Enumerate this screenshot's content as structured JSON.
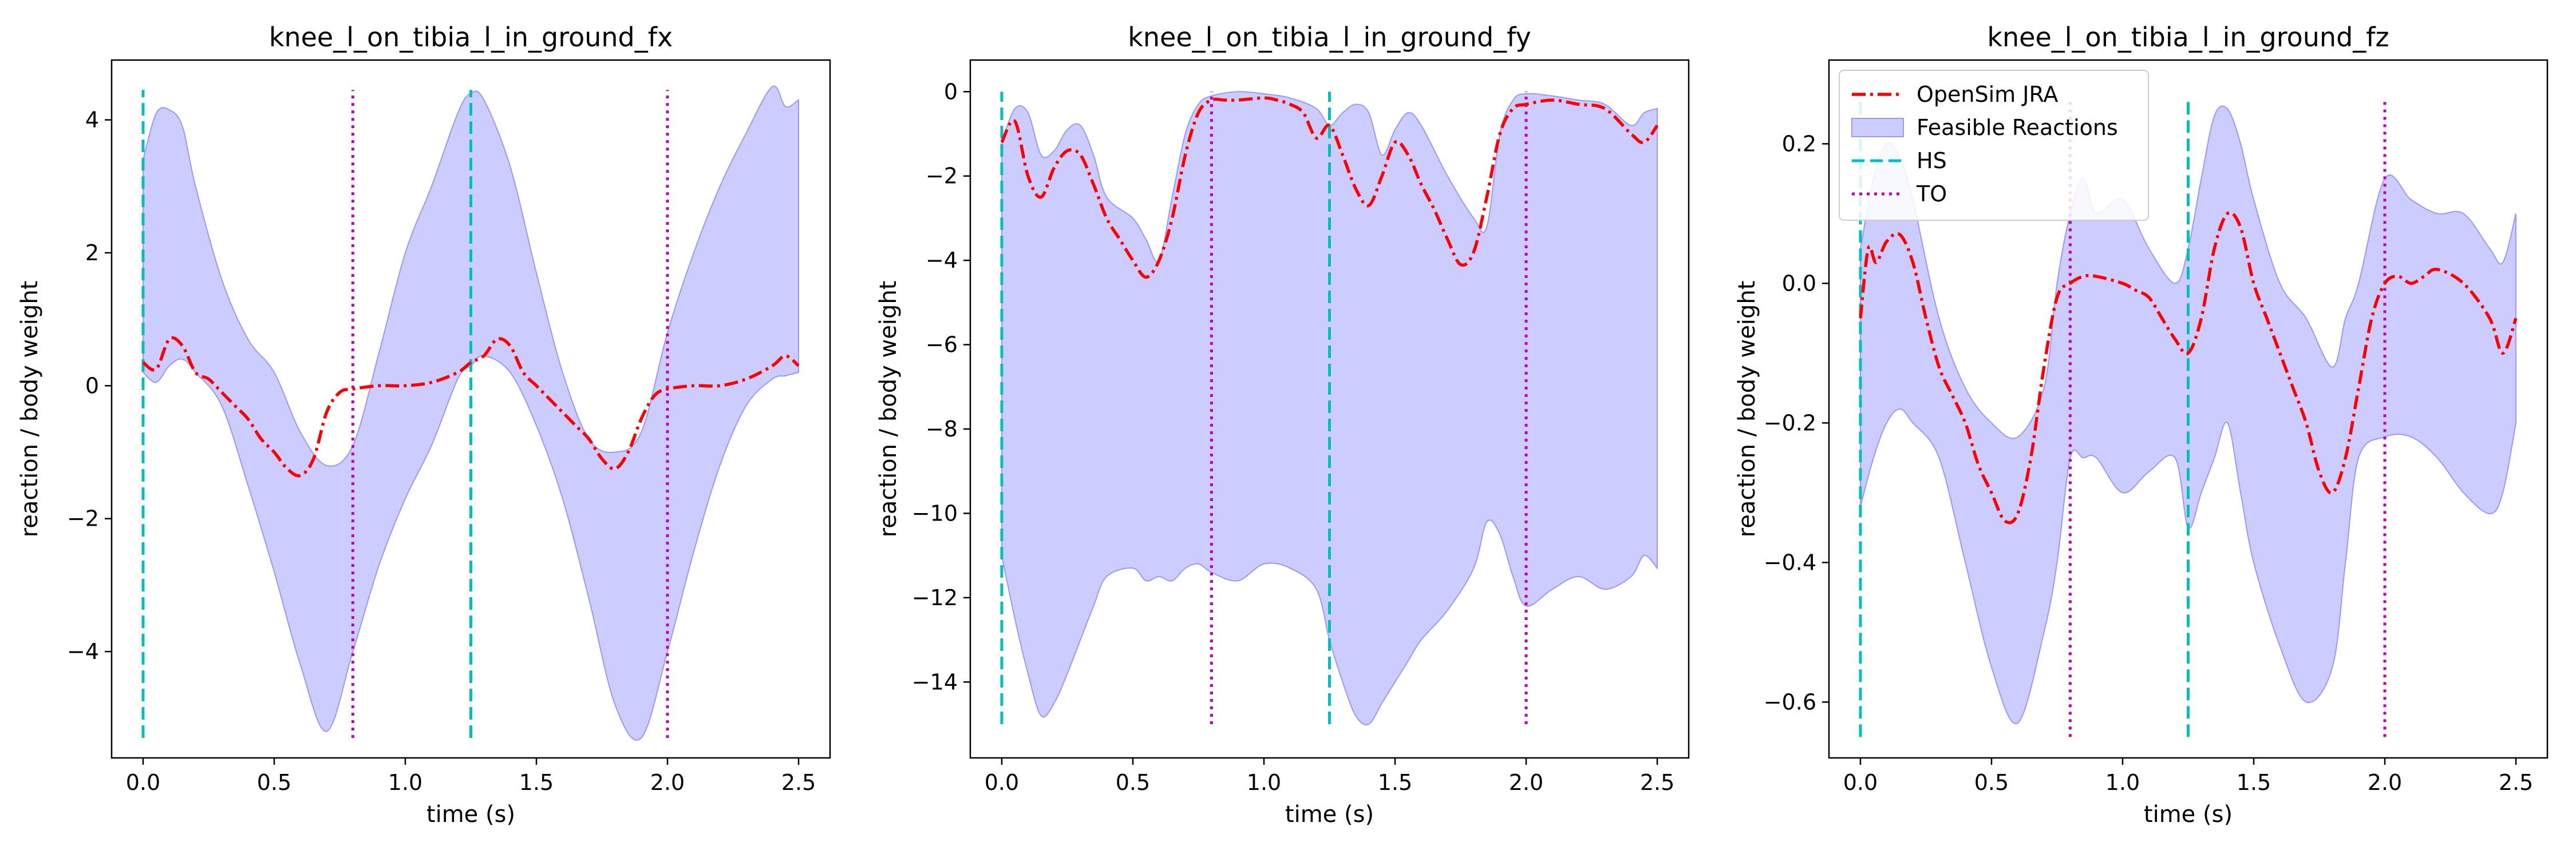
{
  "chart_data": [
    {
      "type": "line",
      "title": "knee_l_on_tibia_l_in_ground_fx",
      "xlabel": "time (s)",
      "ylabel": "reaction / body weight",
      "xlim": [
        -0.12,
        2.62
      ],
      "ylim": [
        -5.6,
        4.9
      ],
      "xticks": [
        0.0,
        0.5,
        1.0,
        1.5,
        2.0,
        2.5
      ],
      "xtick_labels": [
        "0.0",
        "0.5",
        "1.0",
        "1.5",
        "2.0",
        "2.5"
      ],
      "yticks": [
        -4,
        -2,
        0,
        2,
        4
      ],
      "ytick_labels": [
        "−4",
        "−2",
        "0",
        "2",
        "4"
      ],
      "events": {
        "HS": [
          0.0,
          1.25
        ],
        "TO": [
          0.8,
          2.0
        ]
      },
      "events_range": [
        -5.3,
        4.45
      ],
      "band": {
        "name": "Feasible Reactions",
        "x": [
          0.0,
          0.05,
          0.1,
          0.15,
          0.2,
          0.3,
          0.4,
          0.5,
          0.6,
          0.7,
          0.8,
          0.9,
          1.0,
          1.1,
          1.2,
          1.25,
          1.3,
          1.4,
          1.5,
          1.6,
          1.7,
          1.8,
          1.9,
          2.0,
          2.1,
          2.2,
          2.3,
          2.4,
          2.45,
          2.5
        ],
        "upper": [
          3.4,
          4.1,
          4.15,
          3.9,
          3.0,
          1.6,
          0.7,
          0.2,
          -0.7,
          -1.2,
          -0.9,
          0.5,
          2.0,
          3.0,
          4.1,
          4.4,
          4.3,
          3.3,
          1.7,
          0.2,
          -0.8,
          -1.0,
          -0.7,
          0.8,
          2.0,
          3.0,
          3.8,
          4.5,
          4.2,
          4.3
        ],
        "lower": [
          0.2,
          0.05,
          0.3,
          0.4,
          0.2,
          -0.3,
          -1.5,
          -2.8,
          -4.2,
          -5.2,
          -4.0,
          -2.7,
          -1.7,
          -0.9,
          0.1,
          0.3,
          0.45,
          0.2,
          -0.6,
          -1.7,
          -3.2,
          -4.8,
          -5.3,
          -4.0,
          -2.5,
          -1.2,
          -0.3,
          0.1,
          0.15,
          0.2
        ]
      },
      "series": [
        {
          "name": "OpenSim JRA",
          "x": [
            0.0,
            0.05,
            0.1,
            0.15,
            0.2,
            0.25,
            0.3,
            0.35,
            0.4,
            0.45,
            0.5,
            0.55,
            0.6,
            0.65,
            0.7,
            0.75,
            0.8,
            0.9,
            1.0,
            1.1,
            1.2,
            1.25,
            1.3,
            1.35,
            1.4,
            1.45,
            1.5,
            1.55,
            1.6,
            1.65,
            1.7,
            1.75,
            1.8,
            1.85,
            1.9,
            1.95,
            2.0,
            2.1,
            2.2,
            2.3,
            2.4,
            2.45,
            2.5
          ],
          "y": [
            0.35,
            0.25,
            0.7,
            0.6,
            0.2,
            0.1,
            -0.1,
            -0.3,
            -0.5,
            -0.8,
            -1.0,
            -1.25,
            -1.35,
            -1.1,
            -0.4,
            -0.1,
            -0.05,
            0.0,
            0.0,
            0.05,
            0.2,
            0.35,
            0.45,
            0.7,
            0.6,
            0.2,
            0.0,
            -0.2,
            -0.4,
            -0.6,
            -0.8,
            -1.1,
            -1.25,
            -1.0,
            -0.5,
            -0.15,
            -0.05,
            0.0,
            0.0,
            0.1,
            0.3,
            0.45,
            0.3
          ]
        }
      ],
      "legend": false
    },
    {
      "type": "line",
      "title": "knee_l_on_tibia_l_in_ground_fy",
      "xlabel": "time (s)",
      "ylabel": "reaction / body weight",
      "xlim": [
        -0.12,
        2.62
      ],
      "ylim": [
        -15.8,
        0.75
      ],
      "xticks": [
        0.0,
        0.5,
        1.0,
        1.5,
        2.0,
        2.5
      ],
      "xtick_labels": [
        "0.0",
        "0.5",
        "1.0",
        "1.5",
        "2.0",
        "2.5"
      ],
      "yticks": [
        0,
        -2,
        -4,
        -6,
        -8,
        -10,
        -12,
        -14
      ],
      "ytick_labels": [
        "0",
        "−2",
        "−4",
        "−6",
        "−8",
        "−10",
        "−12",
        "−14"
      ],
      "events": {
        "HS": [
          0.0,
          1.25
        ],
        "TO": [
          0.8,
          2.0
        ]
      },
      "events_range": [
        -15.0,
        0.0
      ],
      "band": {
        "name": "Feasible Reactions",
        "x": [
          0.0,
          0.05,
          0.1,
          0.15,
          0.2,
          0.25,
          0.3,
          0.35,
          0.4,
          0.5,
          0.55,
          0.6,
          0.65,
          0.7,
          0.75,
          0.8,
          0.9,
          1.0,
          1.1,
          1.2,
          1.25,
          1.3,
          1.35,
          1.4,
          1.45,
          1.5,
          1.55,
          1.6,
          1.7,
          1.8,
          1.85,
          1.9,
          1.95,
          2.0,
          2.1,
          2.2,
          2.3,
          2.4,
          2.45,
          2.5
        ],
        "upper": [
          -1.2,
          -0.4,
          -0.5,
          -1.5,
          -1.4,
          -0.9,
          -0.8,
          -1.5,
          -2.5,
          -3.0,
          -3.5,
          -4.0,
          -2.5,
          -1.0,
          -0.3,
          -0.1,
          0.0,
          -0.05,
          -0.15,
          -0.4,
          -0.8,
          -0.5,
          -0.3,
          -0.5,
          -1.5,
          -0.9,
          -0.5,
          -0.8,
          -2.0,
          -3.0,
          -3.2,
          -1.0,
          -0.2,
          -0.05,
          -0.1,
          -0.2,
          -0.3,
          -0.8,
          -0.5,
          -0.4
        ],
        "lower": [
          -11.0,
          -12.5,
          -13.8,
          -14.8,
          -14.5,
          -13.8,
          -13.0,
          -12.2,
          -11.5,
          -11.3,
          -11.6,
          -11.5,
          -11.6,
          -11.3,
          -11.2,
          -11.4,
          -11.6,
          -11.2,
          -11.3,
          -11.8,
          -13.0,
          -14.0,
          -14.8,
          -15.0,
          -14.5,
          -14.0,
          -13.5,
          -13.0,
          -12.3,
          -11.3,
          -10.2,
          -10.5,
          -11.5,
          -12.2,
          -11.8,
          -11.5,
          -11.8,
          -11.5,
          -11.0,
          -11.3
        ]
      },
      "series": [
        {
          "name": "OpenSim JRA",
          "x": [
            0.0,
            0.05,
            0.1,
            0.15,
            0.2,
            0.25,
            0.3,
            0.35,
            0.4,
            0.45,
            0.5,
            0.55,
            0.6,
            0.65,
            0.7,
            0.75,
            0.8,
            0.85,
            0.9,
            1.0,
            1.05,
            1.1,
            1.15,
            1.2,
            1.25,
            1.3,
            1.35,
            1.4,
            1.45,
            1.5,
            1.55,
            1.6,
            1.65,
            1.7,
            1.75,
            1.8,
            1.85,
            1.9,
            1.95,
            2.0,
            2.1,
            2.2,
            2.3,
            2.4,
            2.45,
            2.5
          ],
          "y": [
            -1.2,
            -0.7,
            -2.0,
            -2.5,
            -1.8,
            -1.4,
            -1.5,
            -2.2,
            -3.0,
            -3.5,
            -4.0,
            -4.4,
            -4.0,
            -3.0,
            -1.5,
            -0.5,
            -0.2,
            -0.2,
            -0.2,
            -0.15,
            -0.2,
            -0.3,
            -0.5,
            -1.1,
            -0.8,
            -1.5,
            -2.3,
            -2.7,
            -2.0,
            -1.2,
            -1.5,
            -2.2,
            -2.8,
            -3.5,
            -4.1,
            -3.8,
            -2.5,
            -1.0,
            -0.4,
            -0.3,
            -0.2,
            -0.3,
            -0.4,
            -1.0,
            -1.2,
            -0.8
          ]
        }
      ],
      "legend": false
    },
    {
      "type": "line",
      "title": "knee_l_on_tibia_l_in_ground_fz",
      "xlabel": "time (s)",
      "ylabel": "reaction / body weight",
      "xlim": [
        -0.12,
        2.62
      ],
      "ylim": [
        -0.68,
        0.32
      ],
      "xticks": [
        0.0,
        0.5,
        1.0,
        1.5,
        2.0,
        2.5
      ],
      "xtick_labels": [
        "0.0",
        "0.5",
        "1.0",
        "1.5",
        "2.0",
        "2.5"
      ],
      "yticks": [
        0.2,
        0.0,
        -0.2,
        -0.4,
        -0.6
      ],
      "ytick_labels": [
        "0.2",
        "0.0",
        "−0.2",
        "−0.4",
        "−0.6"
      ],
      "events": {
        "HS": [
          0.0,
          1.25
        ],
        "TO": [
          0.8,
          2.0
        ]
      },
      "events_range": [
        -0.65,
        0.26
      ],
      "band": {
        "name": "Feasible Reactions",
        "x": [
          0.0,
          0.05,
          0.1,
          0.15,
          0.2,
          0.3,
          0.4,
          0.5,
          0.6,
          0.7,
          0.75,
          0.8,
          0.85,
          0.9,
          1.0,
          1.1,
          1.2,
          1.25,
          1.3,
          1.35,
          1.4,
          1.45,
          1.5,
          1.6,
          1.7,
          1.8,
          1.85,
          1.9,
          2.0,
          2.1,
          2.2,
          2.3,
          2.4,
          2.45,
          2.5
        ],
        "upper": [
          0.05,
          0.15,
          0.2,
          0.18,
          0.12,
          -0.05,
          -0.15,
          -0.2,
          -0.22,
          -0.15,
          0.0,
          0.1,
          0.15,
          0.1,
          0.12,
          0.05,
          0.0,
          0.05,
          0.15,
          0.24,
          0.25,
          0.2,
          0.12,
          0.0,
          -0.05,
          -0.12,
          -0.05,
          0.0,
          0.15,
          0.12,
          0.1,
          0.1,
          0.05,
          0.03,
          0.1
        ],
        "lower": [
          -0.32,
          -0.25,
          -0.2,
          -0.18,
          -0.2,
          -0.25,
          -0.4,
          -0.55,
          -0.63,
          -0.5,
          -0.4,
          -0.25,
          -0.25,
          -0.25,
          -0.3,
          -0.27,
          -0.25,
          -0.35,
          -0.3,
          -0.25,
          -0.2,
          -0.3,
          -0.4,
          -0.52,
          -0.6,
          -0.55,
          -0.4,
          -0.25,
          -0.22,
          -0.22,
          -0.25,
          -0.3,
          -0.33,
          -0.3,
          -0.2
        ]
      },
      "series": [
        {
          "name": "OpenSim JRA",
          "x": [
            0.0,
            0.03,
            0.06,
            0.1,
            0.15,
            0.2,
            0.25,
            0.3,
            0.35,
            0.4,
            0.45,
            0.5,
            0.55,
            0.6,
            0.65,
            0.7,
            0.75,
            0.8,
            0.85,
            0.9,
            1.0,
            1.05,
            1.1,
            1.15,
            1.2,
            1.25,
            1.3,
            1.35,
            1.4,
            1.45,
            1.5,
            1.55,
            1.6,
            1.65,
            1.7,
            1.75,
            1.8,
            1.85,
            1.9,
            1.95,
            2.0,
            2.05,
            2.1,
            2.15,
            2.2,
            2.3,
            2.4,
            2.45,
            2.5
          ],
          "y": [
            -0.05,
            0.05,
            0.03,
            0.06,
            0.07,
            0.03,
            -0.05,
            -0.12,
            -0.16,
            -0.2,
            -0.26,
            -0.3,
            -0.34,
            -0.33,
            -0.25,
            -0.12,
            -0.02,
            0.0,
            0.01,
            0.01,
            0.0,
            -0.01,
            -0.02,
            -0.05,
            -0.08,
            -0.1,
            -0.05,
            0.05,
            0.1,
            0.08,
            0.0,
            -0.05,
            -0.1,
            -0.15,
            -0.2,
            -0.27,
            -0.3,
            -0.25,
            -0.15,
            -0.05,
            0.0,
            0.01,
            0.0,
            0.01,
            0.02,
            0.0,
            -0.05,
            -0.1,
            -0.05
          ]
        }
      ],
      "legend": true,
      "legend_position": "top-left",
      "legend_entries": [
        "OpenSim JRA",
        "Feasible Reactions",
        "HS",
        "TO"
      ]
    }
  ],
  "colors": {
    "jra": "#ff0000",
    "band_fill": "#ccccff",
    "band_edge": "#9999ff",
    "hs": "#00bfbf",
    "to": "#bf00bf"
  }
}
